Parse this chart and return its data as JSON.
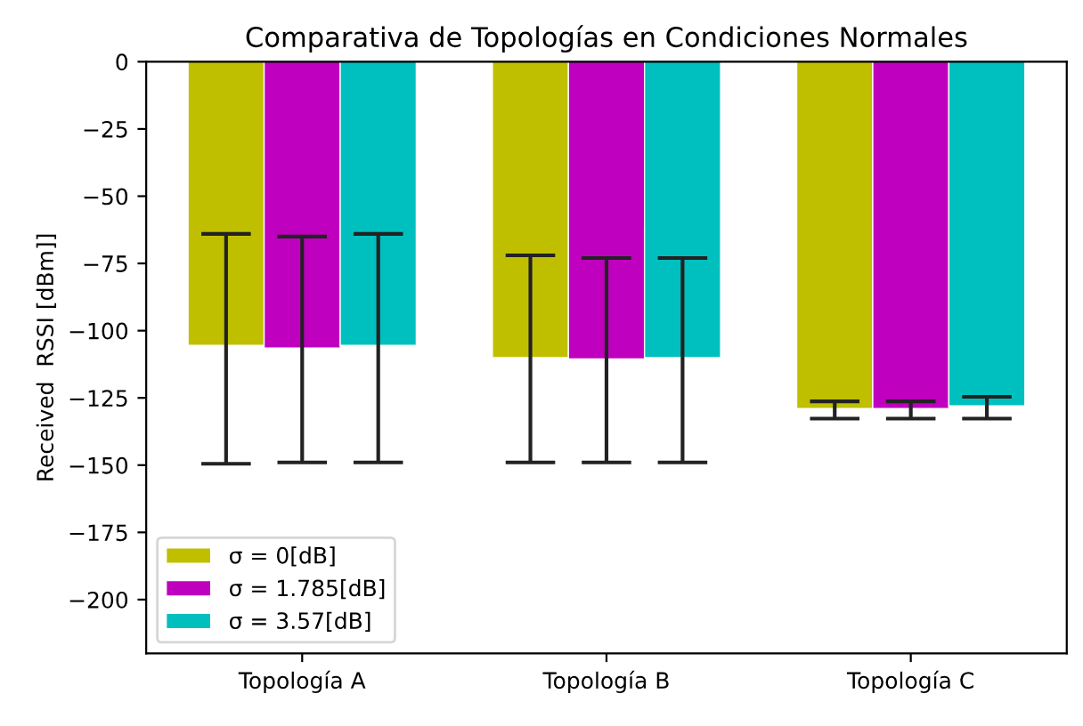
{
  "chart_data": {
    "type": "bar",
    "title": "Comparativa de Topologías en Condiciones Normales",
    "ylabel": "Received  RSSI [dBm]]",
    "categories": [
      "Topología A",
      "Topología B",
      "Topología C"
    ],
    "series": [
      {
        "name": "σ = 0[dB]",
        "color": "#bfbf00",
        "values": [
          -105.5,
          -110,
          -129
        ],
        "errors": [
          [
            -149.5,
            -64
          ],
          [
            -149,
            -72
          ],
          [
            -132.7,
            -126.3
          ]
        ]
      },
      {
        "name": "σ = 1.785[dB]",
        "color": "#bf00bf",
        "values": [
          -106.5,
          -110.5,
          -129
        ],
        "errors": [
          [
            -149,
            -65
          ],
          [
            -149,
            -73
          ],
          [
            -132.7,
            -126.3
          ]
        ]
      },
      {
        "name": "σ = 3.57[dB]",
        "color": "#00bfbf",
        "values": [
          -105.5,
          -110,
          -128
        ],
        "errors": [
          [
            -149,
            -64
          ],
          [
            -149,
            -73
          ],
          [
            -132.7,
            -124.6
          ]
        ]
      }
    ],
    "ylim": [
      -220,
      0
    ],
    "yticks": [
      0,
      -25,
      -50,
      -75,
      -100,
      -125,
      -150,
      -175,
      -200
    ],
    "legend": "bottom left",
    "grid": false
  }
}
